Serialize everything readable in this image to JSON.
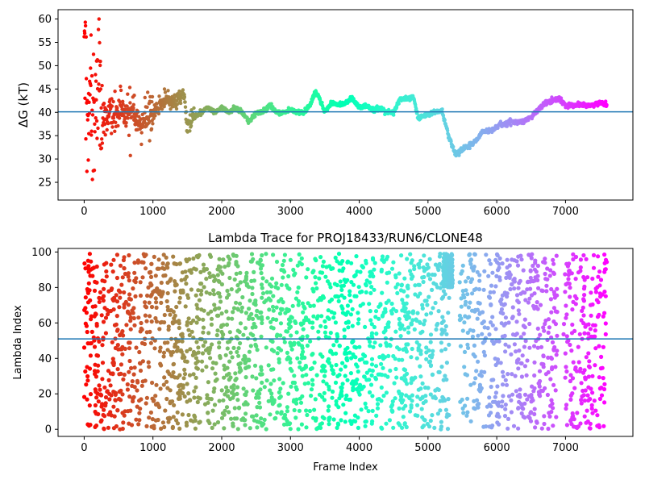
{
  "chart_data": [
    {
      "type": "scatter",
      "title": "",
      "xlabel": "",
      "ylabel": "ΔG (kT)",
      "xlim": [
        -380,
        7980
      ],
      "ylim": [
        21.2,
        62.0
      ],
      "xticks": [
        0,
        1000,
        2000,
        3000,
        4000,
        5000,
        6000,
        7000
      ],
      "yticks": [
        25,
        30,
        35,
        40,
        45,
        50,
        55,
        60
      ],
      "hline": 40.1,
      "colormap": "rainbow (red at frame 0 → violet at last frame)",
      "x_max_frame": 7600,
      "trace": [
        [
          0,
          55
        ],
        [
          20,
          48
        ],
        [
          40,
          42
        ],
        [
          60,
          37
        ],
        [
          80,
          44
        ],
        [
          100,
          50
        ],
        [
          120,
          41
        ],
        [
          150,
          39
        ],
        [
          200,
          44
        ],
        [
          250,
          43
        ],
        [
          300,
          38
        ],
        [
          400,
          40
        ],
        [
          500,
          41
        ],
        [
          600,
          39
        ],
        [
          700,
          40
        ],
        [
          800,
          38
        ],
        [
          900,
          38.5
        ],
        [
          1000,
          40
        ],
        [
          1100,
          42
        ],
        [
          1200,
          43
        ],
        [
          1300,
          42.5
        ],
        [
          1400,
          43
        ],
        [
          1450,
          44.5
        ],
        [
          1500,
          37
        ],
        [
          1600,
          39
        ],
        [
          1700,
          40
        ],
        [
          1800,
          41
        ],
        [
          1900,
          40
        ],
        [
          2000,
          41
        ],
        [
          2100,
          40
        ],
        [
          2200,
          41
        ],
        [
          2300,
          40
        ],
        [
          2400,
          38
        ],
        [
          2500,
          40
        ],
        [
          2600,
          40
        ],
        [
          2700,
          41.5
        ],
        [
          2800,
          40
        ],
        [
          2900,
          40
        ],
        [
          3000,
          40.5
        ],
        [
          3100,
          40
        ],
        [
          3200,
          40
        ],
        [
          3300,
          42
        ],
        [
          3370,
          44.5
        ],
        [
          3450,
          42
        ],
        [
          3500,
          40
        ],
        [
          3600,
          42
        ],
        [
          3700,
          41.5
        ],
        [
          3800,
          42
        ],
        [
          3900,
          43
        ],
        [
          4000,
          41
        ],
        [
          4100,
          41.5
        ],
        [
          4200,
          40.5
        ],
        [
          4300,
          41
        ],
        [
          4400,
          40
        ],
        [
          4500,
          40
        ],
        [
          4600,
          43
        ],
        [
          4700,
          43
        ],
        [
          4800,
          43
        ],
        [
          4850,
          39
        ],
        [
          4900,
          39
        ],
        [
          5000,
          39.5
        ],
        [
          5100,
          40
        ],
        [
          5200,
          40.5
        ],
        [
          5300,
          35
        ],
        [
          5400,
          31
        ],
        [
          5500,
          32
        ],
        [
          5600,
          33
        ],
        [
          5700,
          34
        ],
        [
          5800,
          36
        ],
        [
          5900,
          36
        ],
        [
          6000,
          37
        ],
        [
          6100,
          37.5
        ],
        [
          6200,
          38
        ],
        [
          6300,
          38
        ],
        [
          6400,
          38
        ],
        [
          6500,
          39
        ],
        [
          6600,
          40.5
        ],
        [
          6700,
          42
        ],
        [
          6800,
          42.5
        ],
        [
          6900,
          43
        ],
        [
          7000,
          41.5
        ],
        [
          7100,
          41.5
        ],
        [
          7200,
          41.5
        ],
        [
          7300,
          41.5
        ],
        [
          7400,
          41.5
        ],
        [
          7500,
          42
        ],
        [
          7600,
          41.5
        ]
      ]
    },
    {
      "type": "scatter",
      "title": "Lambda Trace for PROJ18433/RUN6/CLONE48",
      "xlabel": "Frame Index",
      "ylabel": "Lambda Index",
      "xlim": [
        -380,
        7980
      ],
      "ylim": [
        -4,
        102
      ],
      "xticks": [
        0,
        1000,
        2000,
        3000,
        4000,
        5000,
        6000,
        7000
      ],
      "yticks": [
        0,
        20,
        40,
        60,
        80,
        100
      ],
      "hline": 51,
      "value_range": [
        0,
        99
      ],
      "colormap": "rainbow (red at frame 0 → violet at last frame)",
      "x_max_frame": 7600,
      "n_points": 2600,
      "gaps": [
        [
          5310,
          5460
        ],
        [
          6880,
          6960
        ]
      ],
      "dense_band": {
        "x": [
          5220,
          5360
        ],
        "y": [
          80,
          99
        ]
      }
    }
  ]
}
